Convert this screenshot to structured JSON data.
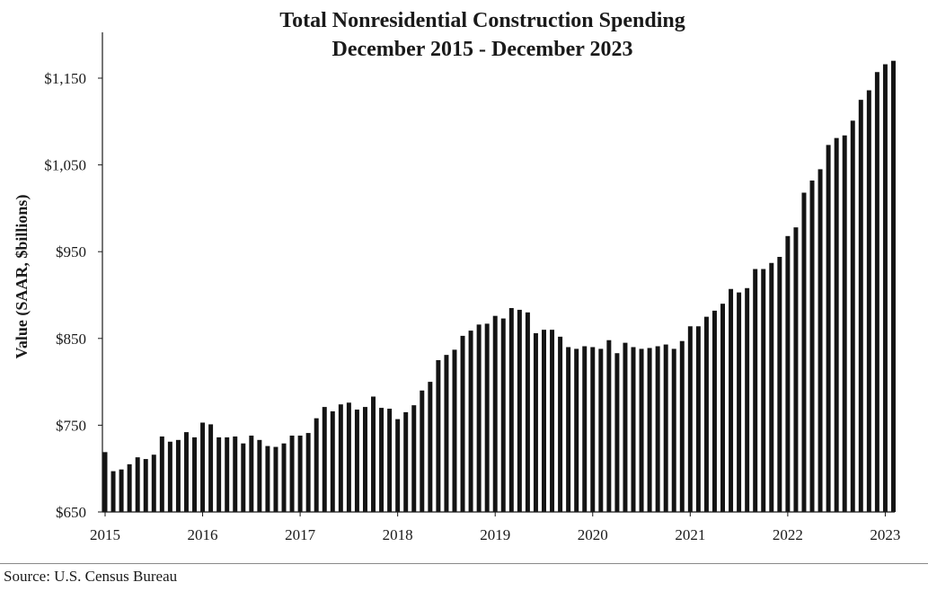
{
  "chart_data": {
    "type": "bar",
    "title": [
      "Total Nonresidential Construction Spending",
      "December 2015 - December 2023"
    ],
    "xlabel": "",
    "ylabel": "Value (SAAR, $billions)",
    "ylim": [
      650,
      1200
    ],
    "yticks": [
      650,
      750,
      850,
      950,
      1050,
      1150
    ],
    "ytick_labels": [
      "$650",
      "$750",
      "$850",
      "$950",
      "$1,050",
      "$1,150"
    ],
    "xtick_labels": [
      "2015",
      "2016",
      "2017",
      "2018",
      "2019",
      "2020",
      "2021",
      "2022",
      "2023"
    ],
    "bar_color": "#141414",
    "values": [
      719,
      697,
      699,
      705,
      713,
      711,
      716,
      737,
      731,
      733,
      742,
      736,
      753,
      751,
      736,
      736,
      737,
      729,
      738,
      733,
      726,
      725,
      729,
      738,
      738,
      741,
      758,
      771,
      766,
      774,
      776,
      768,
      771,
      783,
      770,
      769,
      757,
      765,
      773,
      790,
      800,
      825,
      831,
      837,
      853,
      859,
      866,
      867,
      876,
      873,
      885,
      883,
      880,
      856,
      860,
      860,
      852,
      840,
      838,
      841,
      840,
      838,
      848,
      833,
      845,
      840,
      838,
      839,
      841,
      843,
      838,
      847,
      864,
      864,
      875,
      882,
      890,
      907,
      903,
      908,
      930,
      930,
      937,
      944,
      968,
      978,
      1018,
      1032,
      1045,
      1073,
      1081,
      1084,
      1101,
      1125,
      1136,
      1157,
      1166,
      1170
    ]
  },
  "source": "Source:  U.S. Census Bureau"
}
